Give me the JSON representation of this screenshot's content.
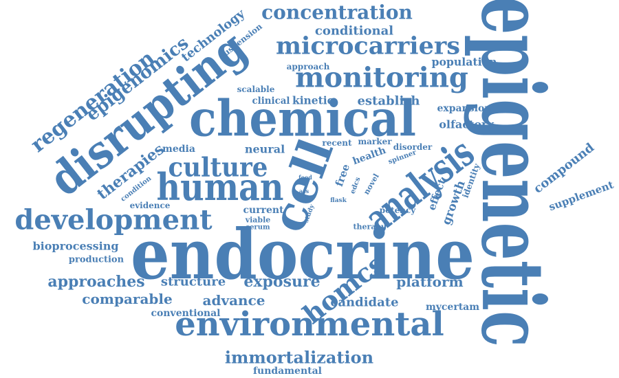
{
  "color": "#4a7fb5",
  "words": [
    "epigenetic",
    "endocrine",
    "chemical",
    "disrupting",
    "cell",
    "human",
    "analysis",
    "environmental",
    "development",
    "culture",
    "monitoring",
    "microcarriers",
    "concentration",
    "regeneration",
    "epigenomics",
    "homcs",
    "immortalization",
    "exposure",
    "conditional",
    "technology",
    "suspension",
    "approaches",
    "structure",
    "comparable",
    "advance",
    "platform",
    "bioprocessing",
    "production",
    "conventional",
    "candidate",
    "fundamental",
    "therapies",
    "condition",
    "evidence",
    "neural",
    "media",
    "compound",
    "supplement",
    "population",
    "approach",
    "scalable",
    "clinical",
    "kinetic",
    "establish",
    "expansion",
    "olfactory",
    "recent",
    "marker",
    "disorder",
    "health",
    "spinner",
    "free",
    "edcs",
    "novel",
    "effect",
    "growth",
    "identity",
    "potency",
    "mycertam",
    "current",
    "viable",
    "serum",
    "study",
    "flask",
    "ass",
    "food",
    "therapy"
  ]
}
